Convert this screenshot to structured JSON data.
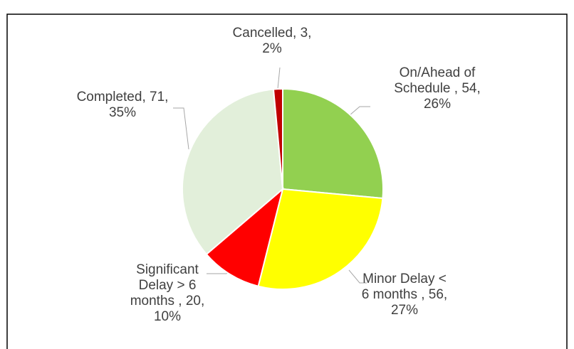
{
  "chart_data": {
    "type": "pie",
    "values": [
      54,
      56,
      20,
      71,
      3
    ],
    "value_labels": [
      "On/Ahead of Schedule , 54, 26%",
      "Minor Delay < 6 months , 56, 27%",
      "Significant Delay > 6 months , 20, 10%",
      "Completed, 71, 35%",
      "Cancelled, 3, 2%"
    ],
    "colors": [
      "#92d050",
      "#ffff00",
      "#ff0000",
      "#e2efda",
      "#c00000"
    ]
  }
}
